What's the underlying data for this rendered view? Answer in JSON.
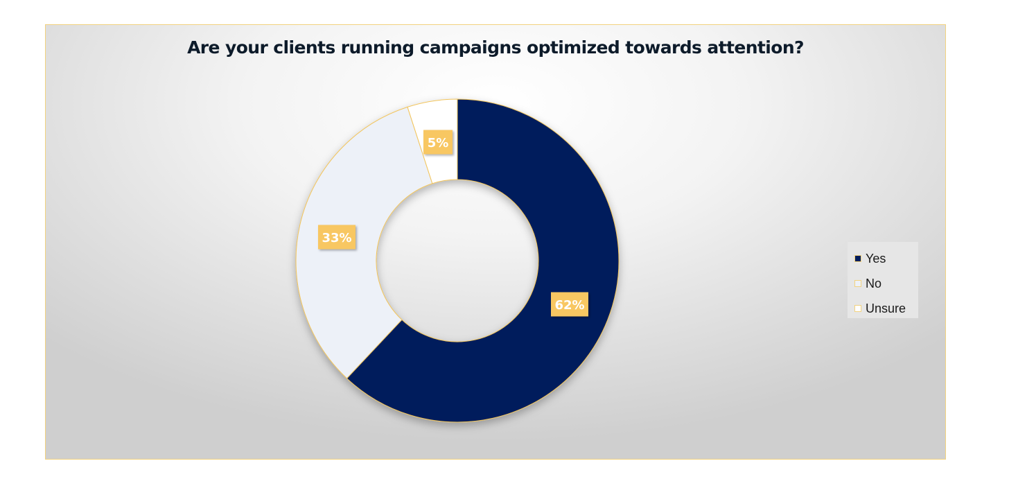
{
  "chart_data": {
    "type": "pie",
    "variant": "donut",
    "title": "Are your clients running campaigns optimized towards attention?",
    "slices": [
      {
        "label": "Yes",
        "value": 62,
        "data_label": "62%",
        "color": "#001e5c"
      },
      {
        "label": "No",
        "value": 33,
        "data_label": "33%",
        "color": "#edf1f8"
      },
      {
        "label": "Unsure",
        "value": 5,
        "data_label": "5%",
        "color": "#ffffff"
      }
    ],
    "legend_position": "right",
    "slice_border_color": "#f2c45a",
    "data_label_background": "#f8c762",
    "data_label_text_color": "#ffffff"
  }
}
